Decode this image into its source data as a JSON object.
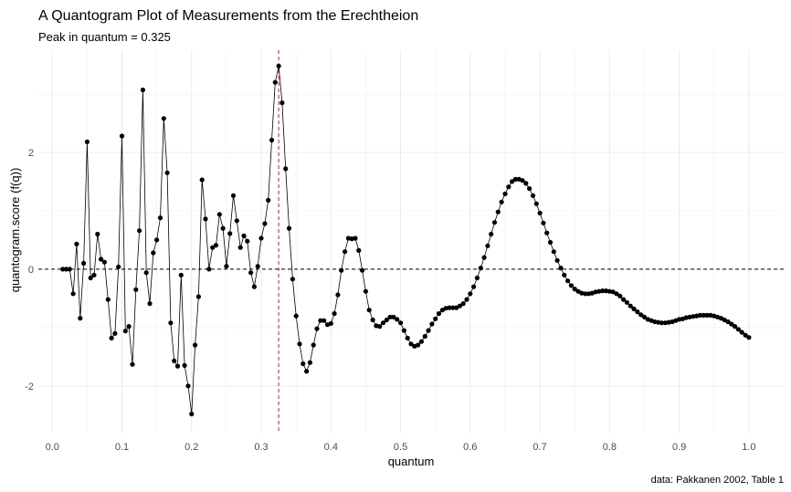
{
  "chart_data": {
    "type": "line",
    "title": "A Quantogram Plot of Measurements from the Erechtheion",
    "subtitle": "Peak in quantum = 0.325",
    "xlabel": "quantum",
    "ylabel": "quantogram.score (f(q))",
    "caption": "data: Pakkanen 2002, Table 1",
    "xlim": [
      -0.02,
      1.05
    ],
    "ylim": [
      -2.8,
      3.75
    ],
    "x_ticks": [
      0.0,
      0.1,
      0.2,
      0.3,
      0.4,
      0.5,
      0.6,
      0.7,
      0.8,
      0.9,
      1.0
    ],
    "x_tick_labels": [
      "0.0",
      "0.1",
      "0.2",
      "0.3",
      "0.4",
      "0.5",
      "0.6",
      "0.7",
      "0.8",
      "0.9",
      "1.0"
    ],
    "y_ticks": [
      -2,
      0,
      2
    ],
    "y_tick_labels": [
      "-2",
      "0",
      "2"
    ],
    "grid": true,
    "hline": {
      "y": 0,
      "style": "dashed",
      "color": "#000000"
    },
    "vline": {
      "x": 0.325,
      "style": "dashed",
      "color": "#b22222"
    },
    "series": [
      {
        "points": [
          [
            0.015,
            0.0
          ],
          [
            0.02,
            0.0
          ],
          [
            0.025,
            0.0
          ],
          [
            0.03,
            -0.42
          ],
          [
            0.035,
            0.43
          ],
          [
            0.04,
            -0.84
          ],
          [
            0.045,
            0.1
          ],
          [
            0.05,
            2.18
          ],
          [
            0.055,
            -0.15
          ],
          [
            0.06,
            -0.1
          ],
          [
            0.065,
            0.6
          ],
          [
            0.07,
            0.17
          ],
          [
            0.075,
            0.12
          ],
          [
            0.08,
            -0.52
          ],
          [
            0.085,
            -1.18
          ],
          [
            0.09,
            -1.1
          ],
          [
            0.095,
            0.04
          ],
          [
            0.1,
            2.28
          ],
          [
            0.105,
            -1.06
          ],
          [
            0.11,
            -0.98
          ],
          [
            0.115,
            -1.63
          ],
          [
            0.12,
            -0.35
          ],
          [
            0.125,
            0.66
          ],
          [
            0.13,
            3.07
          ],
          [
            0.135,
            -0.06
          ],
          [
            0.14,
            -0.59
          ],
          [
            0.145,
            0.28
          ],
          [
            0.15,
            0.5
          ],
          [
            0.155,
            0.88
          ],
          [
            0.16,
            2.58
          ],
          [
            0.165,
            1.65
          ],
          [
            0.17,
            -0.92
          ],
          [
            0.175,
            -1.57
          ],
          [
            0.18,
            -1.66
          ],
          [
            0.185,
            -0.1
          ],
          [
            0.19,
            -1.65
          ],
          [
            0.195,
            -2.0
          ],
          [
            0.2,
            -2.48
          ],
          [
            0.205,
            -1.3
          ],
          [
            0.21,
            -0.47
          ],
          [
            0.215,
            1.53
          ],
          [
            0.22,
            0.86
          ],
          [
            0.225,
            0.0
          ],
          [
            0.23,
            0.37
          ],
          [
            0.235,
            0.41
          ],
          [
            0.24,
            0.94
          ],
          [
            0.245,
            0.7
          ],
          [
            0.25,
            0.05
          ],
          [
            0.255,
            0.61
          ],
          [
            0.26,
            1.26
          ],
          [
            0.265,
            0.83
          ],
          [
            0.27,
            0.37
          ],
          [
            0.275,
            0.57
          ],
          [
            0.28,
            0.48
          ],
          [
            0.285,
            -0.06
          ],
          [
            0.29,
            -0.3
          ],
          [
            0.295,
            0.05
          ],
          [
            0.3,
            0.53
          ],
          [
            0.305,
            0.78
          ],
          [
            0.31,
            1.18
          ],
          [
            0.315,
            2.21
          ],
          [
            0.32,
            3.2
          ],
          [
            0.325,
            3.48
          ],
          [
            0.33,
            2.85
          ],
          [
            0.335,
            1.72
          ],
          [
            0.34,
            0.7
          ],
          [
            0.345,
            -0.17
          ],
          [
            0.35,
            -0.8
          ],
          [
            0.355,
            -1.28
          ],
          [
            0.36,
            -1.62
          ],
          [
            0.365,
            -1.75
          ],
          [
            0.37,
            -1.6
          ],
          [
            0.375,
            -1.3
          ],
          [
            0.38,
            -1.02
          ],
          [
            0.385,
            -0.88
          ],
          [
            0.39,
            -0.88
          ],
          [
            0.395,
            -0.95
          ],
          [
            0.4,
            -0.93
          ],
          [
            0.405,
            -0.76
          ],
          [
            0.41,
            -0.44
          ],
          [
            0.415,
            -0.02
          ],
          [
            0.42,
            0.3
          ],
          [
            0.425,
            0.53
          ],
          [
            0.43,
            0.52
          ],
          [
            0.435,
            0.53
          ],
          [
            0.44,
            0.32
          ],
          [
            0.445,
            -0.02
          ],
          [
            0.45,
            -0.38
          ],
          [
            0.455,
            -0.7
          ],
          [
            0.46,
            -0.87
          ],
          [
            0.465,
            -0.97
          ],
          [
            0.47,
            -0.98
          ],
          [
            0.475,
            -0.92
          ],
          [
            0.48,
            -0.87
          ],
          [
            0.485,
            -0.82
          ],
          [
            0.49,
            -0.82
          ],
          [
            0.495,
            -0.86
          ],
          [
            0.5,
            -0.92
          ],
          [
            0.505,
            -1.05
          ],
          [
            0.51,
            -1.18
          ],
          [
            0.515,
            -1.28
          ],
          [
            0.52,
            -1.32
          ],
          [
            0.525,
            -1.3
          ],
          [
            0.53,
            -1.24
          ],
          [
            0.535,
            -1.15
          ],
          [
            0.54,
            -1.05
          ],
          [
            0.545,
            -0.94
          ],
          [
            0.55,
            -0.85
          ],
          [
            0.555,
            -0.76
          ],
          [
            0.56,
            -0.7
          ],
          [
            0.565,
            -0.67
          ],
          [
            0.57,
            -0.66
          ],
          [
            0.575,
            -0.66
          ],
          [
            0.58,
            -0.66
          ],
          [
            0.585,
            -0.63
          ],
          [
            0.59,
            -0.59
          ],
          [
            0.595,
            -0.52
          ],
          [
            0.6,
            -0.42
          ],
          [
            0.605,
            -0.3
          ],
          [
            0.61,
            -0.15
          ],
          [
            0.615,
            0.02
          ],
          [
            0.62,
            0.2
          ],
          [
            0.625,
            0.4
          ],
          [
            0.63,
            0.6
          ],
          [
            0.635,
            0.8
          ],
          [
            0.64,
            0.98
          ],
          [
            0.645,
            1.15
          ],
          [
            0.65,
            1.29
          ],
          [
            0.655,
            1.41
          ],
          [
            0.66,
            1.5
          ],
          [
            0.665,
            1.54
          ],
          [
            0.67,
            1.54
          ],
          [
            0.675,
            1.52
          ],
          [
            0.68,
            1.47
          ],
          [
            0.685,
            1.38
          ],
          [
            0.69,
            1.26
          ],
          [
            0.695,
            1.12
          ],
          [
            0.7,
            0.96
          ],
          [
            0.705,
            0.79
          ],
          [
            0.71,
            0.62
          ],
          [
            0.715,
            0.46
          ],
          [
            0.72,
            0.3
          ],
          [
            0.725,
            0.15
          ],
          [
            0.73,
            0.02
          ],
          [
            0.735,
            -0.1
          ],
          [
            0.74,
            -0.2
          ],
          [
            0.745,
            -0.28
          ],
          [
            0.75,
            -0.34
          ],
          [
            0.755,
            -0.38
          ],
          [
            0.76,
            -0.41
          ],
          [
            0.765,
            -0.42
          ],
          [
            0.77,
            -0.42
          ],
          [
            0.775,
            -0.41
          ],
          [
            0.78,
            -0.39
          ],
          [
            0.785,
            -0.38
          ],
          [
            0.79,
            -0.37
          ],
          [
            0.795,
            -0.37
          ],
          [
            0.8,
            -0.38
          ],
          [
            0.805,
            -0.39
          ],
          [
            0.81,
            -0.42
          ],
          [
            0.815,
            -0.46
          ],
          [
            0.82,
            -0.52
          ],
          [
            0.825,
            -0.57
          ],
          [
            0.83,
            -0.63
          ],
          [
            0.835,
            -0.68
          ],
          [
            0.84,
            -0.73
          ],
          [
            0.845,
            -0.78
          ],
          [
            0.85,
            -0.82
          ],
          [
            0.855,
            -0.86
          ],
          [
            0.86,
            -0.88
          ],
          [
            0.865,
            -0.9
          ],
          [
            0.87,
            -0.91
          ],
          [
            0.875,
            -0.92
          ],
          [
            0.88,
            -0.92
          ],
          [
            0.885,
            -0.91
          ],
          [
            0.89,
            -0.9
          ],
          [
            0.895,
            -0.88
          ],
          [
            0.9,
            -0.86
          ],
          [
            0.905,
            -0.85
          ],
          [
            0.91,
            -0.83
          ],
          [
            0.915,
            -0.82
          ],
          [
            0.92,
            -0.81
          ],
          [
            0.925,
            -0.8
          ],
          [
            0.93,
            -0.79
          ],
          [
            0.935,
            -0.79
          ],
          [
            0.94,
            -0.79
          ],
          [
            0.945,
            -0.79
          ],
          [
            0.95,
            -0.8
          ],
          [
            0.955,
            -0.82
          ],
          [
            0.96,
            -0.84
          ],
          [
            0.965,
            -0.87
          ],
          [
            0.97,
            -0.9
          ],
          [
            0.975,
            -0.94
          ],
          [
            0.98,
            -0.98
          ],
          [
            0.985,
            -1.03
          ],
          [
            0.99,
            -1.08
          ],
          [
            0.995,
            -1.13
          ],
          [
            1.0,
            -1.17
          ]
        ]
      }
    ]
  }
}
